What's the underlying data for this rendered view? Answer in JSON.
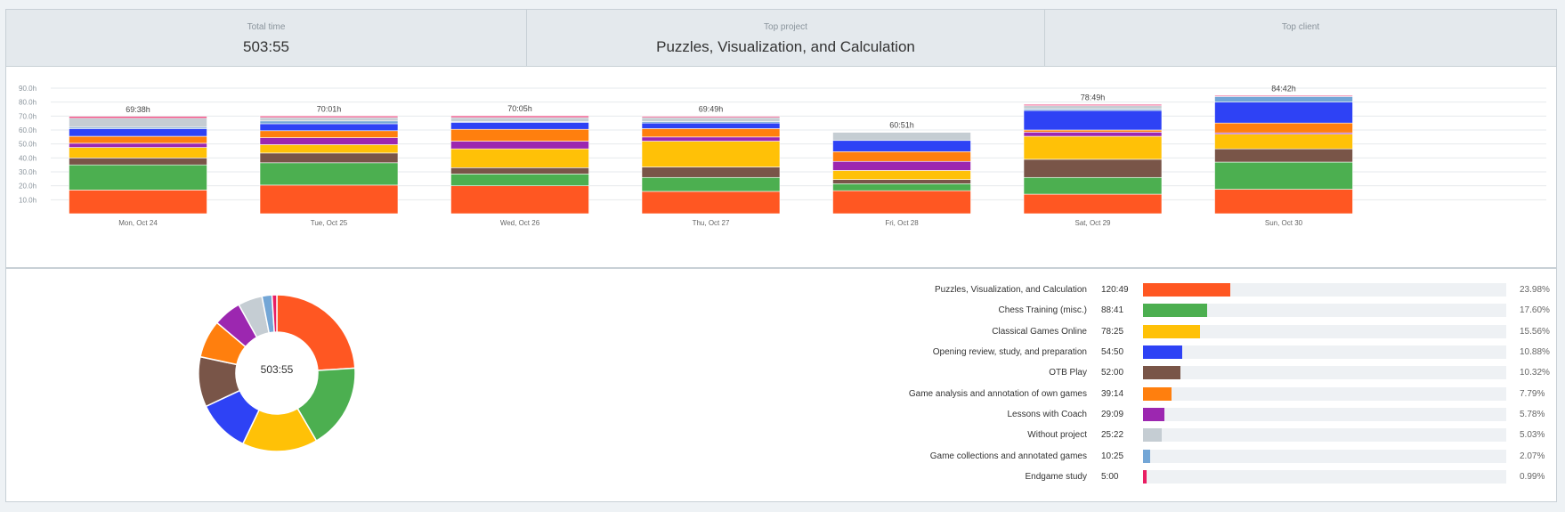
{
  "summary": {
    "total_time_label": "Total time",
    "total_time_value": "503:55",
    "top_project_label": "Top project",
    "top_project_value": "Puzzles, Visualization, and Calculation",
    "top_client_label": "Top client",
    "top_client_value": ""
  },
  "chart_data": [
    {
      "type": "bar",
      "stacked": true,
      "categories": [
        "Mon, Oct 24",
        "Tue, Oct 25",
        "Wed, Oct 26",
        "Thu, Oct 27",
        "Fri, Oct 28",
        "Sat, Oct 29",
        "Sun, Oct 30"
      ],
      "totals_labels": [
        "69:38h",
        "70:01h",
        "70:05h",
        "69:49h",
        "60:51h",
        "78:49h",
        "84:42h"
      ],
      "yticks": [
        "10.0h",
        "20.0h",
        "30.0h",
        "40.0h",
        "50.0h",
        "60.0h",
        "70.0h",
        "80.0h",
        "90.0h"
      ],
      "ylim": [
        0,
        90
      ],
      "grid": true,
      "series": [
        {
          "name": "Puzzles, Visualization, and Calculation",
          "color": "#ff5722",
          "values": [
            17.0,
            20.5,
            20.0,
            16.0,
            16.5,
            14.0,
            17.5
          ]
        },
        {
          "name": "Chess Training (misc.)",
          "color": "#4caf50",
          "values": [
            18.0,
            16.0,
            8.5,
            10.0,
            5.0,
            12.0,
            19.5
          ]
        },
        {
          "name": "OTB Play",
          "color": "#795548",
          "values": [
            5.0,
            7.0,
            4.5,
            7.5,
            3.0,
            13.0,
            9.5
          ]
        },
        {
          "name": "Classical Games Online",
          "color": "#ffc107",
          "values": [
            7.5,
            6.0,
            13.5,
            18.5,
            6.5,
            16.5,
            10.5
          ]
        },
        {
          "name": "Lessons with Coach",
          "color": "#9c27b0",
          "values": [
            3.0,
            5.0,
            5.5,
            3.0,
            6.5,
            3.0,
            1.0
          ]
        },
        {
          "name": "Game analysis and annotation of own games",
          "color": "#ff7f0e",
          "values": [
            5.0,
            5.0,
            8.5,
            6.0,
            7.0,
            1.5,
            7.0
          ]
        },
        {
          "name": "Opening review, study, and preparation",
          "color": "#2e42f5",
          "values": [
            5.5,
            5.0,
            5.0,
            4.0,
            8.0,
            14.0,
            15.0
          ]
        },
        {
          "name": "Game collections and annotated games",
          "color": "#73a6d6",
          "values": [
            1.0,
            2.0,
            0.5,
            1.0,
            0.0,
            1.0,
            4.0
          ]
        },
        {
          "name": "Without project",
          "color": "#c5cdd3",
          "values": [
            6.5,
            2.5,
            3.0,
            3.0,
            5.85,
            2.5,
            0.0
          ]
        },
        {
          "name": "Endgame study",
          "color": "#e91e63",
          "values": [
            1.13,
            1.0,
            1.08,
            0.82,
            0.0,
            0.82,
            0.7
          ]
        }
      ]
    },
    {
      "type": "pie",
      "donut": true,
      "center_label": "503:55",
      "labels": [
        "Puzzles, Visualization, and Calculation",
        "Chess Training (misc.)",
        "Classical Games Online",
        "Opening review, study, and preparation",
        "OTB Play",
        "Game analysis and annotation of own games",
        "Lessons with Coach",
        "Without project",
        "Game collections and annotated games",
        "Endgame study"
      ],
      "values": [
        23.98,
        17.6,
        15.56,
        10.88,
        10.32,
        7.79,
        5.78,
        5.03,
        2.07,
        0.99
      ],
      "colors": [
        "#ff5722",
        "#4caf50",
        "#ffc107",
        "#2e42f5",
        "#795548",
        "#ff7f0e",
        "#9c27b0",
        "#c5cdd3",
        "#73a6d6",
        "#e91e63"
      ]
    }
  ],
  "projects": [
    {
      "name": "Puzzles, Visualization, and Calculation",
      "time": "120:49",
      "percent": "23.98%",
      "fraction": 0.2398,
      "color": "#ff5722"
    },
    {
      "name": "Chess Training (misc.)",
      "time": "88:41",
      "percent": "17.60%",
      "fraction": 0.176,
      "color": "#4caf50"
    },
    {
      "name": "Classical Games Online",
      "time": "78:25",
      "percent": "15.56%",
      "fraction": 0.1556,
      "color": "#ffc107"
    },
    {
      "name": "Opening review, study, and preparation",
      "time": "54:50",
      "percent": "10.88%",
      "fraction": 0.1088,
      "color": "#2e42f5"
    },
    {
      "name": "OTB Play",
      "time": "52:00",
      "percent": "10.32%",
      "fraction": 0.1032,
      "color": "#795548"
    },
    {
      "name": "Game analysis and annotation of own games",
      "time": "39:14",
      "percent": "7.79%",
      "fraction": 0.0779,
      "color": "#ff7f0e"
    },
    {
      "name": "Lessons with Coach",
      "time": "29:09",
      "percent": "5.78%",
      "fraction": 0.0578,
      "color": "#9c27b0"
    },
    {
      "name": "Without project",
      "time": "25:22",
      "percent": "5.03%",
      "fraction": 0.0503,
      "color": "#c5cdd3"
    },
    {
      "name": "Game collections and annotated games",
      "time": "10:25",
      "percent": "2.07%",
      "fraction": 0.0207,
      "color": "#73a6d6"
    },
    {
      "name": "Endgame study",
      "time": "5:00",
      "percent": "0.99%",
      "fraction": 0.0099,
      "color": "#e91e63"
    }
  ]
}
